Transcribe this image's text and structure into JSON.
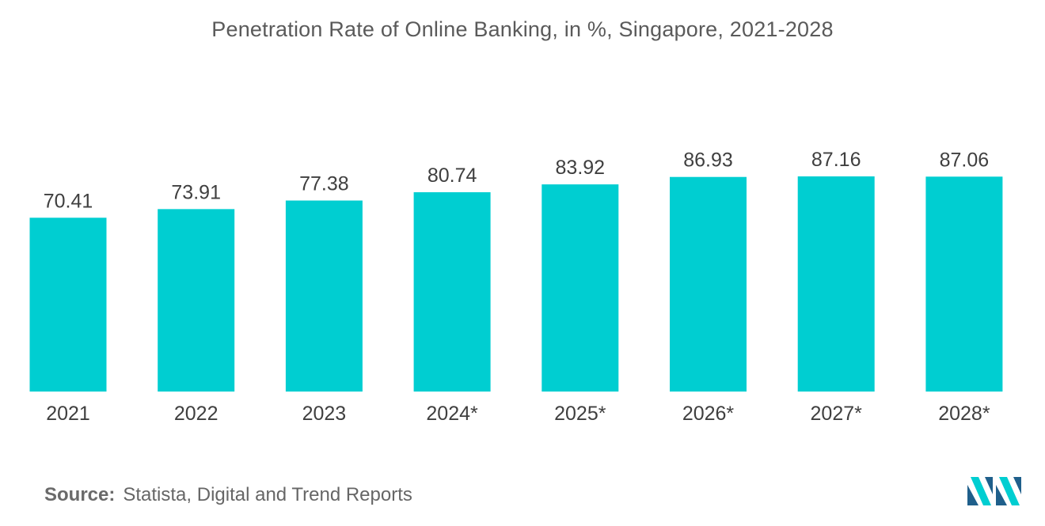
{
  "chart_data": {
    "type": "bar",
    "title": "Penetration Rate of Online Banking, in %, Singapore, 2021-2028",
    "categories": [
      "2021",
      "2022",
      "2023",
      "2024*",
      "2025*",
      "2026*",
      "2027*",
      "2028*"
    ],
    "values": [
      70.41,
      73.91,
      77.38,
      80.74,
      83.92,
      86.93,
      87.16,
      87.06
    ],
    "value_labels": [
      "70.41",
      "73.91",
      "77.38",
      "80.74",
      "83.92",
      "86.93",
      "87.16",
      "87.06"
    ],
    "xlabel": "",
    "ylabel": "",
    "ylim": [
      0,
      87.16
    ],
    "grid": false,
    "legend": "none",
    "bar_color": "#00CED1"
  },
  "source": {
    "label": "Source:",
    "text": "Statista, Digital and Trend Reports"
  },
  "logo": {
    "icon": "mordor-intelligence-logo-icon",
    "colors": [
      "#1f5f8b",
      "#00CED1"
    ]
  }
}
